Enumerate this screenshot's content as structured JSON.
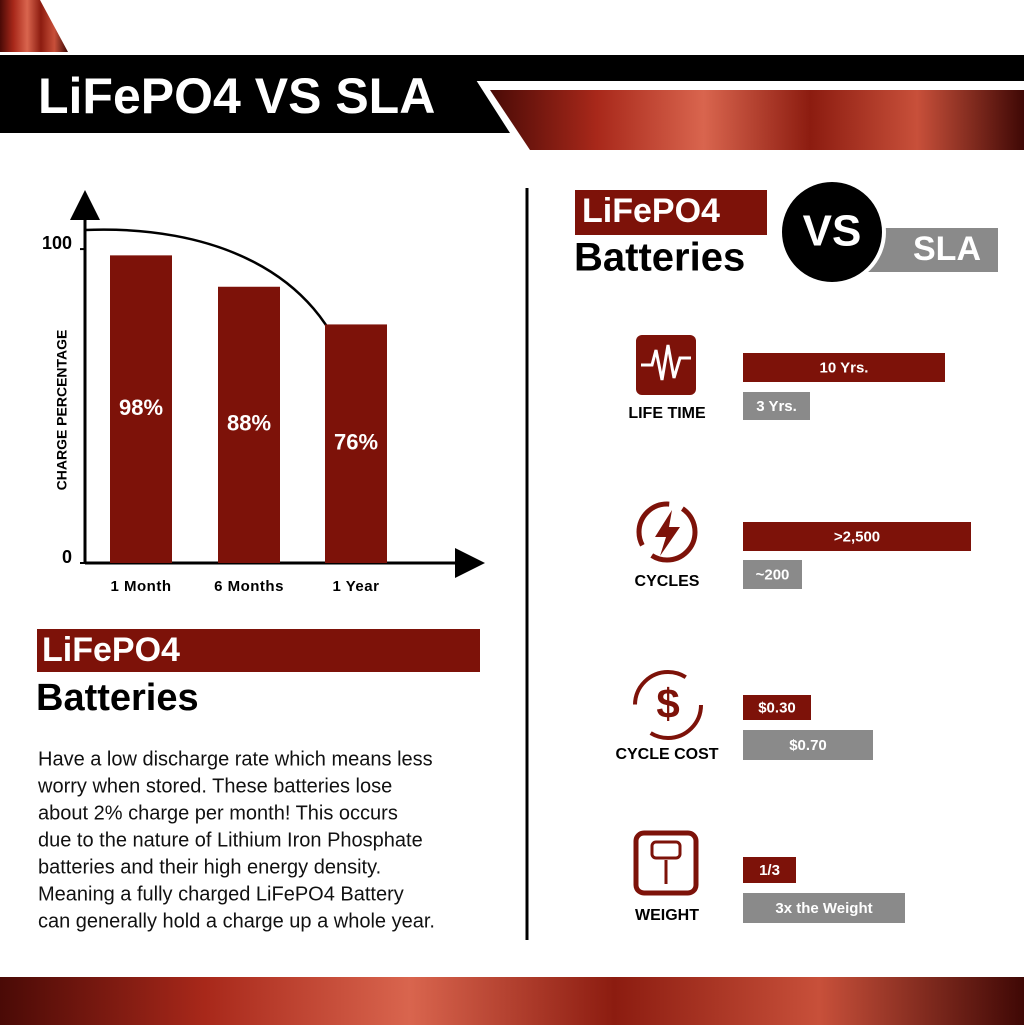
{
  "header": {
    "title": "LiFePO4 VS SLA"
  },
  "chart_data": {
    "type": "bar",
    "y_label": "CHARGE PERCENTAGE",
    "categories": [
      "1 Month",
      "6 Months",
      "1 Year"
    ],
    "values": [
      98,
      88,
      76
    ],
    "value_labels": [
      "98%",
      "88%",
      "76%"
    ],
    "color": "#7d1209",
    "ylim": [
      0,
      115
    ],
    "yticks": [
      0,
      100
    ]
  },
  "left_panel": {
    "tag": "LiFePO4",
    "heading": "Batteries",
    "paragraph": [
      "Have a low discharge rate which means less",
      "worry when stored. These batteries lose",
      "about 2% charge per month! This occurs",
      "due to the nature of Lithium Iron Phosphate",
      "batteries and their high energy density.",
      "Meaning a fully charged LiFePO4 Battery",
      "can generally hold a charge up a whole year."
    ]
  },
  "right_panel": {
    "tag": "LiFePO4",
    "heading": "Batteries",
    "vs": "VS",
    "sla": "SLA",
    "rows": [
      {
        "label": "LIFE TIME",
        "lifepo4": "10 Yrs.",
        "sla": "3 Yrs."
      },
      {
        "label": "CYCLES",
        "lifepo4": ">2,500",
        "sla": "~200"
      },
      {
        "label": "CYCLE COST",
        "lifepo4": "$0.30",
        "sla": "$0.70"
      },
      {
        "label": "WEIGHT",
        "lifepo4": "1/3",
        "sla": "3x the Weight"
      }
    ]
  }
}
